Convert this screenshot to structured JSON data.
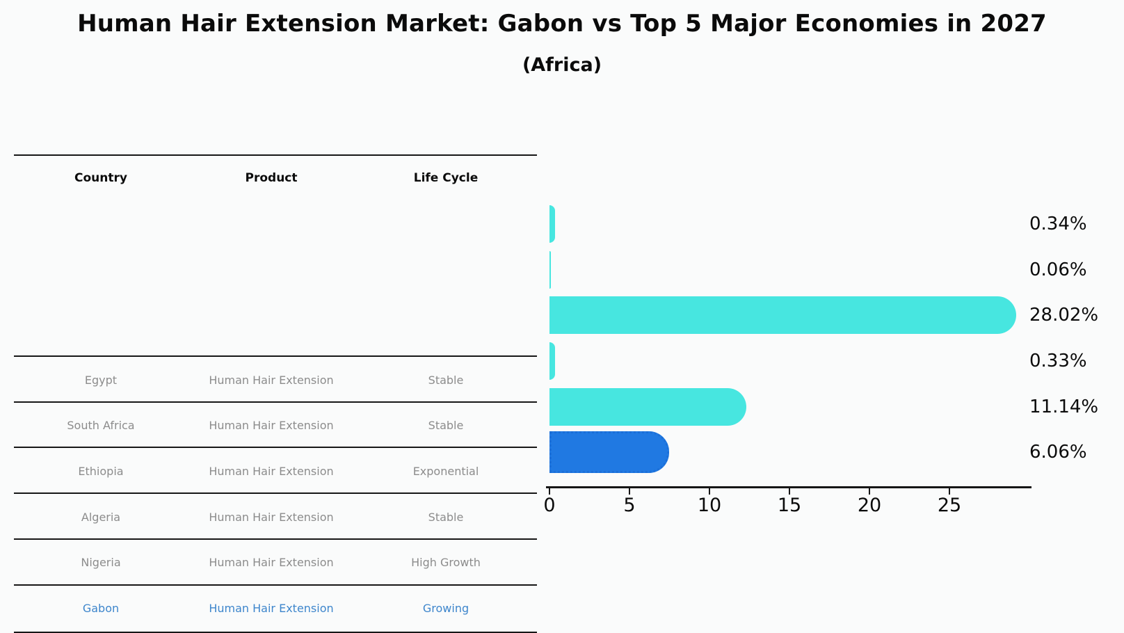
{
  "title": "Human Hair Extension Market: Gabon vs Top 5 Major Economies in 2027",
  "subtitle": "(Africa)",
  "table": {
    "headers": [
      "Country",
      "Product",
      "Life Cycle"
    ],
    "rows": [
      {
        "country": "Egypt",
        "product": "Human Hair Extension",
        "life_cycle": "Stable",
        "highlighted": false
      },
      {
        "country": "South Africa",
        "product": "Human Hair Extension",
        "life_cycle": "Stable",
        "highlighted": false
      },
      {
        "country": "Ethiopia",
        "product": "Human Hair Extension",
        "life_cycle": "Exponential",
        "highlighted": false
      },
      {
        "country": "Algeria",
        "product": "Human Hair Extension",
        "life_cycle": "Stable",
        "highlighted": false
      },
      {
        "country": "Nigeria",
        "product": "Human Hair Extension",
        "life_cycle": "High Growth",
        "highlighted": false
      },
      {
        "country": "Gabon",
        "product": "Human Hair Extension",
        "life_cycle": "Growing",
        "highlighted": true
      }
    ]
  },
  "chart_data": {
    "type": "bar",
    "orientation": "horizontal",
    "title": "Human Hair Extension Market: Gabon vs Top 5 Major Economies in 2027 (Africa)",
    "categories": [
      "Egypt",
      "South Africa",
      "Ethiopia",
      "Algeria",
      "Nigeria",
      "Gabon"
    ],
    "values": [
      0.34,
      0.06,
      28.02,
      0.33,
      11.14,
      6.06
    ],
    "value_labels": [
      "0.34%",
      "0.06%",
      "28.02%",
      "0.33%",
      "11.14%",
      "6.06%"
    ],
    "unit": "%",
    "x_ticks": [
      "0",
      "5",
      "10",
      "15",
      "20",
      "25"
    ],
    "xlim": [
      0,
      30
    ],
    "grid": false,
    "legend": "none",
    "highlight_index": 5
  },
  "colors": {
    "bar": "#47e6e0",
    "highlight_bar": "#2079e2",
    "highlight_border": "#1b6fd8",
    "highlight_text": "#3e86cc",
    "row_text": "#8c8c8c",
    "line": "#161616"
  }
}
